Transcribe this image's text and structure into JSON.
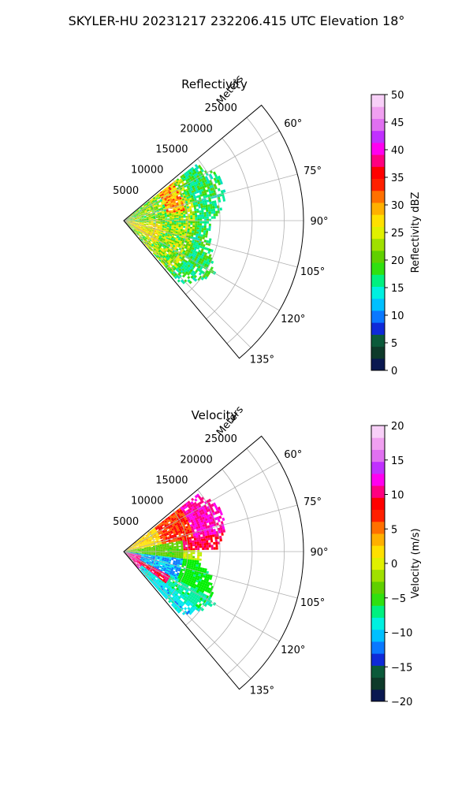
{
  "figure": {
    "suptitle": "SKYLER-HU  20231217  232206.415 UTC Elevation 18°"
  },
  "chart_data": [
    {
      "type": "polar-sector",
      "title": "Reflectivity",
      "radial_axis_label": "Meters",
      "radial_ticks": [
        5000,
        10000,
        15000,
        20000,
        25000
      ],
      "radial_tick_labels": [
        "5000",
        "10000",
        "15000",
        "20000",
        "25000"
      ],
      "r_max": 28000,
      "azimuth_range_deg": [
        50,
        140
      ],
      "azimuth_ticks_deg": [
        60,
        75,
        90,
        105,
        120,
        135
      ],
      "azimuth_tick_labels": [
        "60°",
        "75°",
        "90°",
        "105°",
        "120°",
        "135°"
      ],
      "grid": true,
      "data_extent": {
        "azimuth_deg": [
          52,
          138
        ],
        "range_m": [
          0,
          17000
        ]
      },
      "colorbar": {
        "label": "Reflectivity dBZ",
        "range": [
          0,
          50
        ],
        "ticks": [
          0,
          5,
          10,
          15,
          20,
          25,
          30,
          35,
          40,
          45,
          50
        ],
        "tick_labels": [
          "0",
          "5",
          "10",
          "15",
          "20",
          "25",
          "30",
          "35",
          "40",
          "45",
          "50"
        ],
        "colors": [
          "#0a1850",
          "#0e3a2a",
          "#0b5a3a",
          "#0f2ad8",
          "#0a78ff",
          "#00c0ff",
          "#00f0e0",
          "#00f080",
          "#30e010",
          "#60d000",
          "#a0e000",
          "#e0f000",
          "#ffe000",
          "#ffb000",
          "#ff7000",
          "#ff2000",
          "#ff0000",
          "#ff0080",
          "#ff00f0",
          "#c030ff",
          "#e070f0",
          "#f0a0f0",
          "#f8d0f8"
        ]
      }
    },
    {
      "type": "polar-sector",
      "title": "Velocity",
      "radial_axis_label": "Meters",
      "radial_ticks": [
        5000,
        10000,
        15000,
        20000,
        25000
      ],
      "radial_tick_labels": [
        "5000",
        "10000",
        "15000",
        "20000",
        "25000"
      ],
      "r_max": 28000,
      "azimuth_range_deg": [
        50,
        140
      ],
      "azimuth_ticks_deg": [
        60,
        75,
        90,
        105,
        120,
        135
      ],
      "azimuth_tick_labels": [
        "60°",
        "75°",
        "90°",
        "105°",
        "120°",
        "135°"
      ],
      "grid": true,
      "data_extent": {
        "azimuth_deg": [
          52,
          138
        ],
        "range_m": [
          0,
          17000
        ]
      },
      "colorbar": {
        "label": "Velocity (m/s)",
        "range": [
          -20,
          20
        ],
        "ticks": [
          -20,
          -15,
          -10,
          -5,
          0,
          5,
          10,
          15,
          20
        ],
        "tick_labels": [
          "−20",
          "−15",
          "−10",
          "−5",
          "0",
          "5",
          "10",
          "15",
          "20"
        ],
        "colors": [
          "#0a1850",
          "#0e3a2a",
          "#0b5a3a",
          "#0f2ad8",
          "#0a78ff",
          "#00c0ff",
          "#00f0e0",
          "#00f080",
          "#30e010",
          "#60d000",
          "#a0e000",
          "#e0f000",
          "#ffe000",
          "#ffb000",
          "#ff7000",
          "#ff2000",
          "#ff0000",
          "#ff0080",
          "#ff00f0",
          "#c030ff",
          "#e070f0",
          "#f0a0f0",
          "#f8d0f8"
        ]
      }
    }
  ]
}
